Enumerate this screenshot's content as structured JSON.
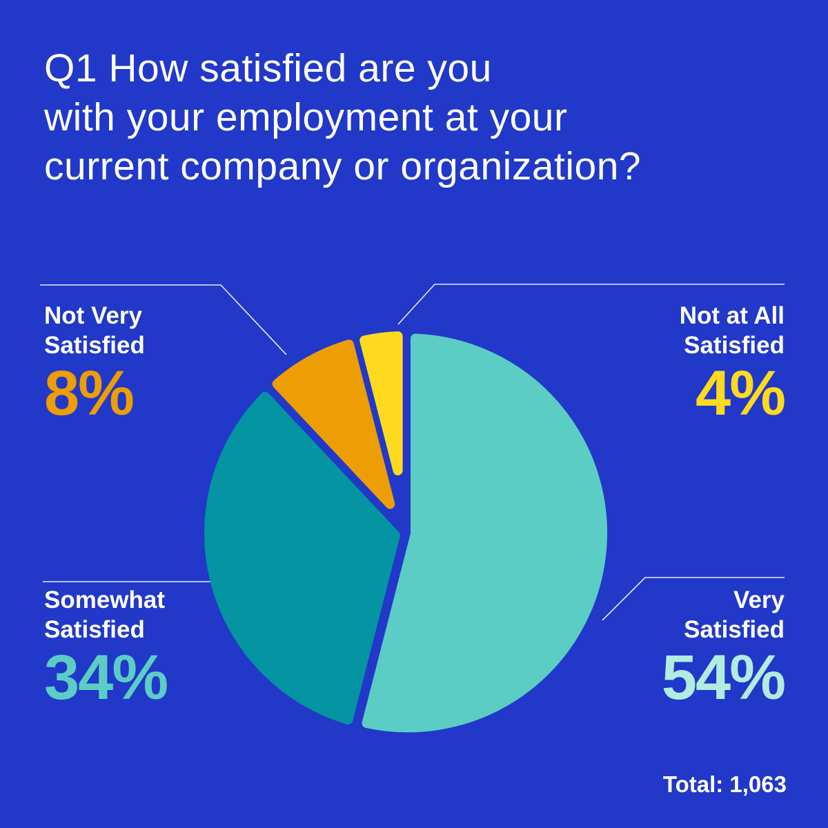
{
  "colors": {
    "background": "#2138C9",
    "text_primary": "#FFFFFF",
    "leader_line": "#E8ECFA"
  },
  "title_text": "Q1 How satisfied are you\nwith your employment at your\ncurrent company or organization?",
  "total_text": "Total: 1,063",
  "chart_data": {
    "type": "pie",
    "title": "Q1 How satisfied are you with your employment at your current company or organization?",
    "total_respondents": 1063,
    "total_label": "Total: 1,063",
    "unit": "percent",
    "start_angle_deg": 0,
    "direction": "clockwise",
    "legend_position": "callouts-around-pie",
    "slices": [
      {
        "label": "Very Satisfied",
        "value": 54,
        "pct_label": "54%",
        "callout_label": "Very\nSatisfied",
        "color": "#5CCDC4",
        "pct_color": "#B2EBE0"
      },
      {
        "label": "Somewhat Satisfied",
        "value": 34,
        "pct_label": "34%",
        "callout_label": "Somewhat\nSatisfied",
        "color": "#0494A2",
        "pct_color": "#5CCDC4"
      },
      {
        "label": "Not Very Satisfied",
        "value": 8,
        "pct_label": "8%",
        "callout_label": "Not Very\nSatisfied",
        "color": "#EC9E04",
        "pct_color": "#EC9E04"
      },
      {
        "label": "Not at All Satisfied",
        "value": 4,
        "pct_label": "4%",
        "callout_label": "Not at All\nSatisfied",
        "color": "#FEDA1E",
        "pct_color": "#FEDA1E"
      }
    ]
  }
}
